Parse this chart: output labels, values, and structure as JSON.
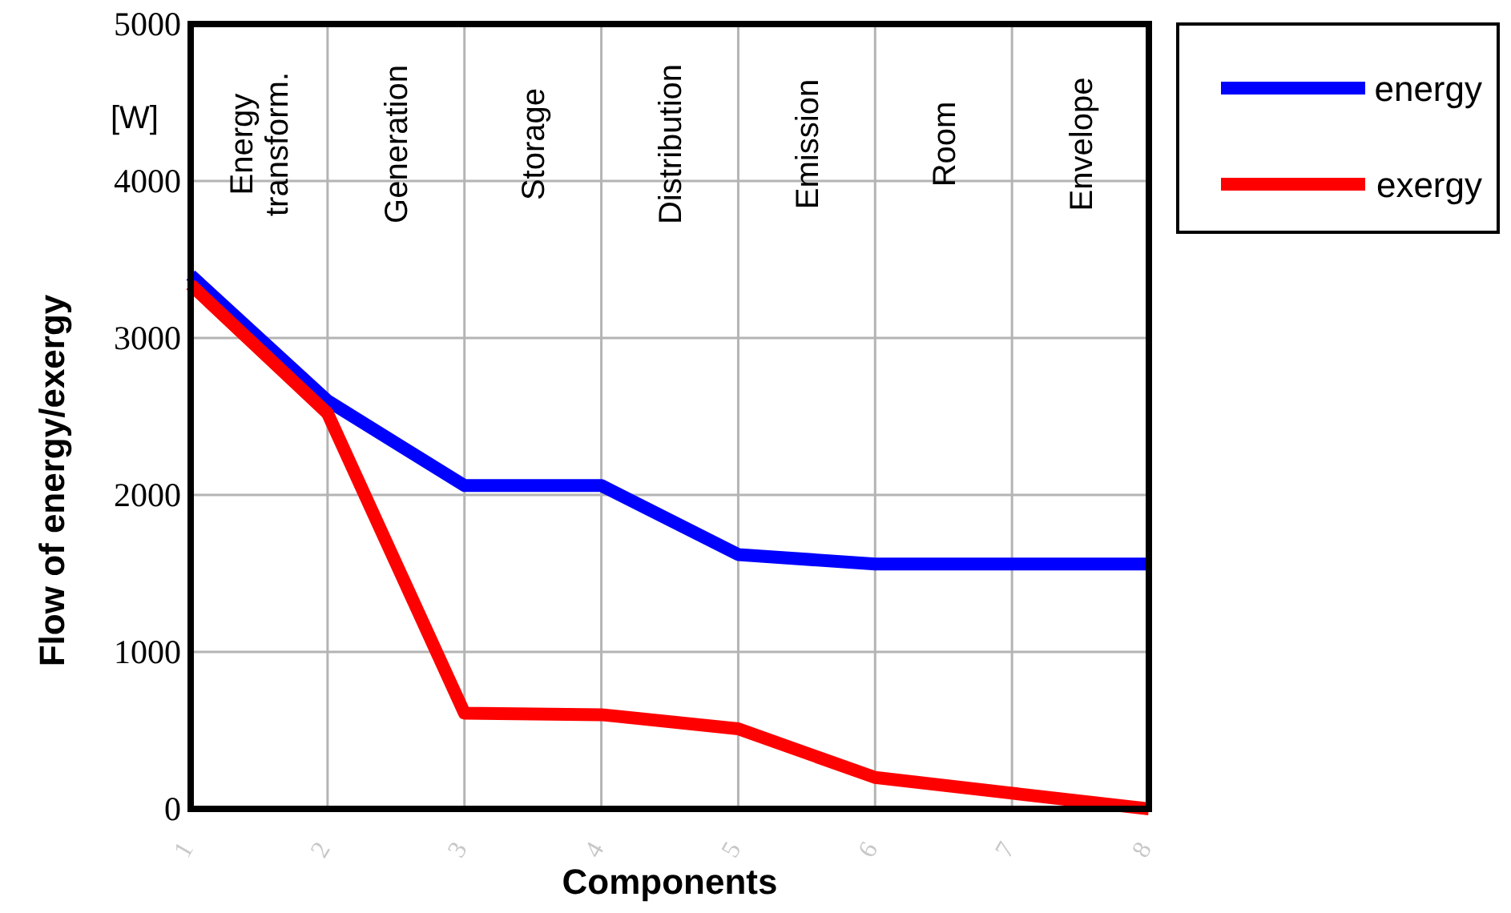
{
  "chart_data": {
    "type": "line",
    "xlabel": "Components",
    "ylabel": "Flow of energy/exergy",
    "x": [
      1,
      2,
      3,
      4,
      5,
      6,
      7,
      8
    ],
    "series": [
      {
        "name": "energy",
        "color": "#0000ff",
        "values": [
          3400,
          2600,
          2060,
          2060,
          1620,
          1560,
          1560,
          1560
        ]
      },
      {
        "name": "exergy",
        "color": "#ff0000",
        "values": [
          3340,
          2520,
          610,
          600,
          510,
          200,
          100,
          0
        ]
      }
    ],
    "xlim": [
      1,
      8
    ],
    "xticks": [
      1,
      2,
      3,
      4,
      5,
      6,
      7,
      8
    ],
    "ylim": [
      0,
      5000
    ],
    "yticks": [
      0,
      1000,
      2000,
      3000,
      4000,
      5000
    ],
    "grid": true,
    "legend": "top right",
    "marker": "none",
    "line_style": "solid",
    "annotations": [
      "[W]",
      "Energy transform.",
      "Generation",
      "Storage",
      "Distribution",
      "Emission",
      "Room",
      "Envelope"
    ]
  }
}
